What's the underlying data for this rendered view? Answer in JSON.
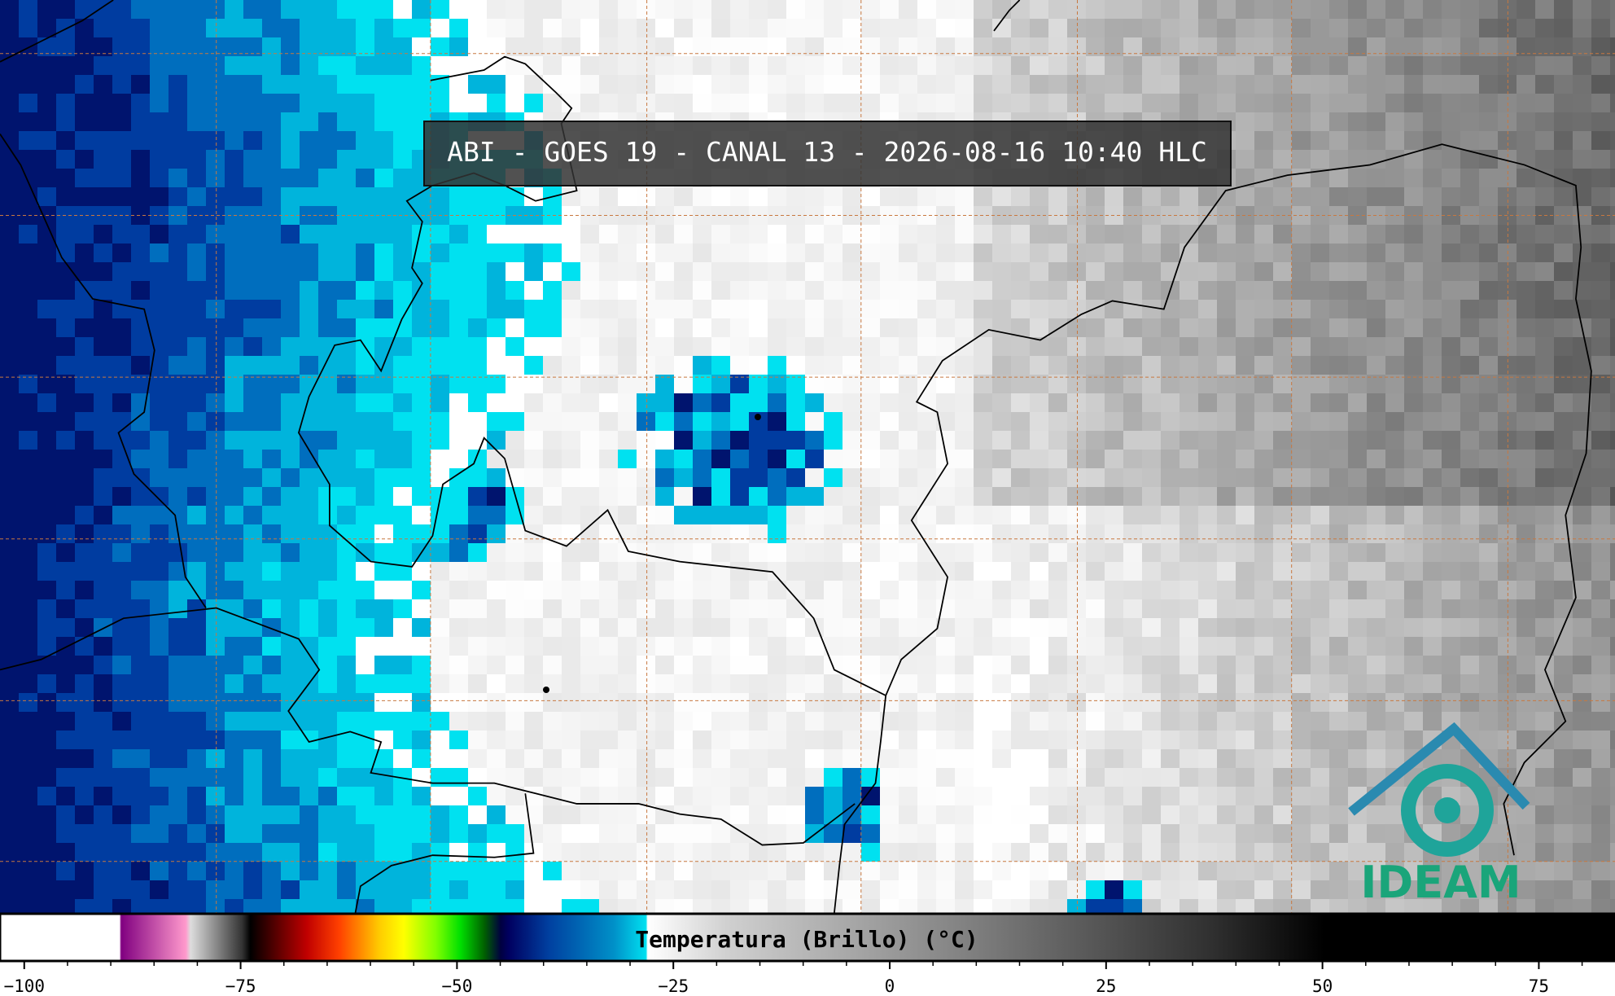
{
  "header": {
    "title": "ABI - GOES 19 - CANAL 13 - 2026-08-16 10:40 HLC"
  },
  "logo": {
    "text": "IDEAM"
  },
  "colorbar": {
    "label": "Temperatura (Brillo) (°C)",
    "lim": [
      -102.8,
      83.8
    ],
    "ticks": [
      {
        "value": -100,
        "label": "−100"
      },
      {
        "value": -75,
        "label": "−75"
      },
      {
        "value": -50,
        "label": "−50"
      },
      {
        "value": -25,
        "label": "−25"
      },
      0,
      25,
      50,
      75
    ],
    "minor_ticks": [
      -95,
      -90,
      -85,
      -80,
      -70,
      -65,
      -60,
      -55,
      -45,
      -40,
      -35,
      -30,
      -20,
      -15,
      -10,
      -5,
      5,
      10,
      15,
      20,
      30,
      35,
      40,
      45,
      55,
      60,
      65,
      70,
      80
    ]
  }
}
